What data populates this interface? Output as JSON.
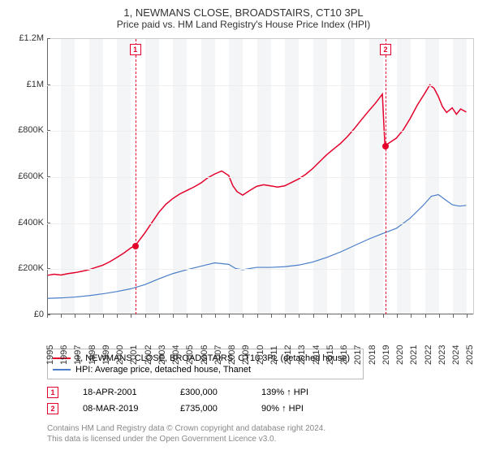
{
  "title": "1, NEWMANS CLOSE, BROADSTAIRS, CT10 3PL",
  "subtitle": "Price paid vs. HM Land Registry's House Price Index (HPI)",
  "chart": {
    "type": "line",
    "background_color": "#ffffff",
    "shade_color": "#f3f5f7",
    "grid_color": "#eeeeee",
    "axis_color": "#666666",
    "text_color": "#333333",
    "title_fontsize": 13,
    "label_fontsize": 11,
    "x": {
      "min": 1995,
      "max": 2025.5,
      "ticks": [
        1995,
        1996,
        1997,
        1998,
        1999,
        2000,
        2001,
        2002,
        2003,
        2004,
        2005,
        2006,
        2007,
        2008,
        2009,
        2010,
        2011,
        2012,
        2013,
        2014,
        2015,
        2016,
        2017,
        2018,
        2019,
        2020,
        2021,
        2022,
        2023,
        2024,
        2025
      ]
    },
    "y": {
      "min": 0,
      "max": 1200000,
      "ticks": [
        {
          "v": 0,
          "label": "£0"
        },
        {
          "v": 200000,
          "label": "£200K"
        },
        {
          "v": 400000,
          "label": "£400K"
        },
        {
          "v": 600000,
          "label": "£600K"
        },
        {
          "v": 800000,
          "label": "£800K"
        },
        {
          "v": 1000000,
          "label": "£1M"
        },
        {
          "v": 1200000,
          "label": "£1.2M"
        }
      ]
    },
    "alt_shade_start": 1996,
    "series": [
      {
        "name": "1, NEWMANS CLOSE, BROADSTAIRS, CT10 3PL (detached house)",
        "color": "#e4002b",
        "line_width": 1.5,
        "points": [
          [
            1995,
            170000
          ],
          [
            1995.5,
            175000
          ],
          [
            1996,
            172000
          ],
          [
            1996.5,
            178000
          ],
          [
            1997,
            182000
          ],
          [
            1997.5,
            188000
          ],
          [
            1998,
            195000
          ],
          [
            1998.5,
            205000
          ],
          [
            1999,
            215000
          ],
          [
            1999.5,
            230000
          ],
          [
            2000,
            248000
          ],
          [
            2000.5,
            268000
          ],
          [
            2001,
            290000
          ],
          [
            2001.3,
            300000
          ],
          [
            2001.5,
            315000
          ],
          [
            2002,
            355000
          ],
          [
            2002.5,
            400000
          ],
          [
            2003,
            445000
          ],
          [
            2003.5,
            480000
          ],
          [
            2004,
            505000
          ],
          [
            2004.5,
            525000
          ],
          [
            2005,
            540000
          ],
          [
            2005.5,
            555000
          ],
          [
            2006,
            572000
          ],
          [
            2006.5,
            595000
          ],
          [
            2007,
            612000
          ],
          [
            2007.5,
            625000
          ],
          [
            2008,
            605000
          ],
          [
            2008.3,
            560000
          ],
          [
            2008.6,
            535000
          ],
          [
            2009,
            520000
          ],
          [
            2009.5,
            540000
          ],
          [
            2010,
            558000
          ],
          [
            2010.5,
            565000
          ],
          [
            2011,
            560000
          ],
          [
            2011.5,
            555000
          ],
          [
            2012,
            560000
          ],
          [
            2012.5,
            575000
          ],
          [
            2013,
            590000
          ],
          [
            2013.5,
            610000
          ],
          [
            2014,
            635000
          ],
          [
            2014.5,
            665000
          ],
          [
            2015,
            695000
          ],
          [
            2015.5,
            720000
          ],
          [
            2016,
            745000
          ],
          [
            2016.5,
            775000
          ],
          [
            2017,
            810000
          ],
          [
            2017.5,
            848000
          ],
          [
            2018,
            885000
          ],
          [
            2018.5,
            920000
          ],
          [
            2019,
            960000
          ],
          [
            2019.18,
            735000
          ],
          [
            2019.5,
            748000
          ],
          [
            2020,
            768000
          ],
          [
            2020.5,
            805000
          ],
          [
            2021,
            855000
          ],
          [
            2021.5,
            912000
          ],
          [
            2022,
            960000
          ],
          [
            2022.4,
            1000000
          ],
          [
            2022.7,
            985000
          ],
          [
            2023,
            950000
          ],
          [
            2023.3,
            905000
          ],
          [
            2023.6,
            880000
          ],
          [
            2024,
            900000
          ],
          [
            2024.3,
            872000
          ],
          [
            2024.6,
            895000
          ],
          [
            2025,
            882000
          ]
        ]
      },
      {
        "name": "HPI: Average price, detached house, Thanet",
        "color": "#4a7ec8",
        "line_width": 1.2,
        "points": [
          [
            1995,
            70000
          ],
          [
            1996,
            72000
          ],
          [
            1997,
            76000
          ],
          [
            1998,
            82000
          ],
          [
            1999,
            90000
          ],
          [
            2000,
            100000
          ],
          [
            2001,
            112000
          ],
          [
            2002,
            130000
          ],
          [
            2003,
            155000
          ],
          [
            2004,
            178000
          ],
          [
            2005,
            195000
          ],
          [
            2006,
            210000
          ],
          [
            2007,
            225000
          ],
          [
            2008,
            218000
          ],
          [
            2008.5,
            200000
          ],
          [
            2009,
            195000
          ],
          [
            2010,
            205000
          ],
          [
            2011,
            205000
          ],
          [
            2012,
            208000
          ],
          [
            2013,
            215000
          ],
          [
            2014,
            228000
          ],
          [
            2015,
            248000
          ],
          [
            2016,
            272000
          ],
          [
            2017,
            300000
          ],
          [
            2018,
            328000
          ],
          [
            2019,
            352000
          ],
          [
            2020,
            375000
          ],
          [
            2021,
            420000
          ],
          [
            2022,
            480000
          ],
          [
            2022.5,
            515000
          ],
          [
            2023,
            522000
          ],
          [
            2023.5,
            500000
          ],
          [
            2024,
            478000
          ],
          [
            2024.5,
            472000
          ],
          [
            2025,
            475000
          ]
        ]
      }
    ],
    "markers": [
      {
        "n": "1",
        "year": 2001.3,
        "value": 300000,
        "color": "#e4002b"
      },
      {
        "n": "2",
        "year": 2019.18,
        "value": 735000,
        "color": "#e4002b"
      }
    ]
  },
  "legend": {
    "rows": [
      {
        "color": "#e4002b",
        "label": "1, NEWMANS CLOSE, BROADSTAIRS, CT10 3PL (detached house)"
      },
      {
        "color": "#4a7ec8",
        "label": "HPI: Average price, detached house, Thanet"
      }
    ]
  },
  "sales": [
    {
      "n": "1",
      "color": "#e4002b",
      "date": "18-APR-2001",
      "price": "£300,000",
      "hpi": "139% ↑ HPI"
    },
    {
      "n": "2",
      "color": "#e4002b",
      "date": "08-MAR-2019",
      "price": "£735,000",
      "hpi": "90% ↑ HPI"
    }
  ],
  "footer": {
    "line1": "Contains HM Land Registry data © Crown copyright and database right 2024.",
    "line2": "This data is licensed under the Open Government Licence v3.0."
  }
}
